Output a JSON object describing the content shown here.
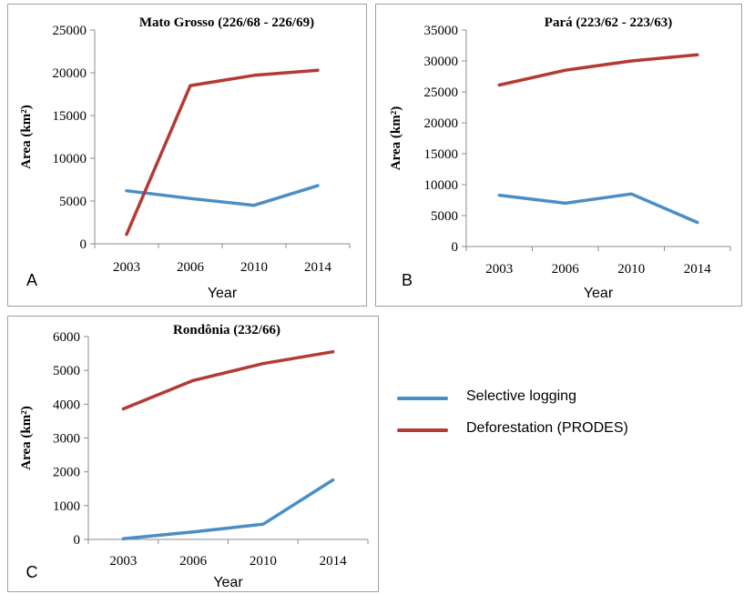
{
  "colors": {
    "selective_logging": "#4a8ec5",
    "deforestation": "#b33a35"
  },
  "legend": {
    "items": [
      {
        "label": "Selective logging",
        "color": "#4a8ec5"
      },
      {
        "label": "Deforestation (PRODES)",
        "color": "#b33a35"
      }
    ]
  },
  "chart_data": [
    {
      "type": "line",
      "panel_letter": "A",
      "title": "Mato Grosso (226/68 - 226/69)",
      "xlabel": "Year",
      "ylabel": "Area (km²)",
      "categories": [
        "2003",
        "2006",
        "2010",
        "2014"
      ],
      "ylim": [
        0,
        25000
      ],
      "yticks": [
        0,
        5000,
        10000,
        15000,
        20000,
        25000
      ],
      "series": [
        {
          "name": "Selective logging",
          "color": "#4a8ec5",
          "values": [
            6200,
            5300,
            4500,
            6800
          ]
        },
        {
          "name": "Deforestation (PRODES)",
          "color": "#b33a35",
          "values": [
            1100,
            18500,
            19700,
            20300
          ]
        }
      ]
    },
    {
      "type": "line",
      "panel_letter": "B",
      "title": "Pará (223/62 - 223/63)",
      "xlabel": "Year",
      "ylabel": "Area (km²)",
      "categories": [
        "2003",
        "2006",
        "2010",
        "2014"
      ],
      "ylim": [
        0,
        35000
      ],
      "yticks": [
        0,
        5000,
        10000,
        15000,
        20000,
        25000,
        30000,
        35000
      ],
      "series": [
        {
          "name": "Selective logging",
          "color": "#4a8ec5",
          "values": [
            8300,
            7000,
            8500,
            3900
          ]
        },
        {
          "name": "Deforestation (PRODES)",
          "color": "#b33a35",
          "values": [
            26100,
            28500,
            30000,
            31000
          ]
        }
      ]
    },
    {
      "type": "line",
      "panel_letter": "C",
      "title": "Rondônia (232/66)",
      "xlabel": "Year",
      "ylabel": "Area (km²)",
      "categories": [
        "2003",
        "2006",
        "2010",
        "2014"
      ],
      "ylim": [
        0,
        6000
      ],
      "yticks": [
        0,
        1000,
        2000,
        3000,
        4000,
        5000,
        6000
      ],
      "series": [
        {
          "name": "Selective logging",
          "color": "#4a8ec5",
          "values": [
            20,
            220,
            450,
            1760
          ]
        },
        {
          "name": "Deforestation (PRODES)",
          "color": "#b33a35",
          "values": [
            3860,
            4700,
            5200,
            5550
          ]
        }
      ]
    }
  ]
}
